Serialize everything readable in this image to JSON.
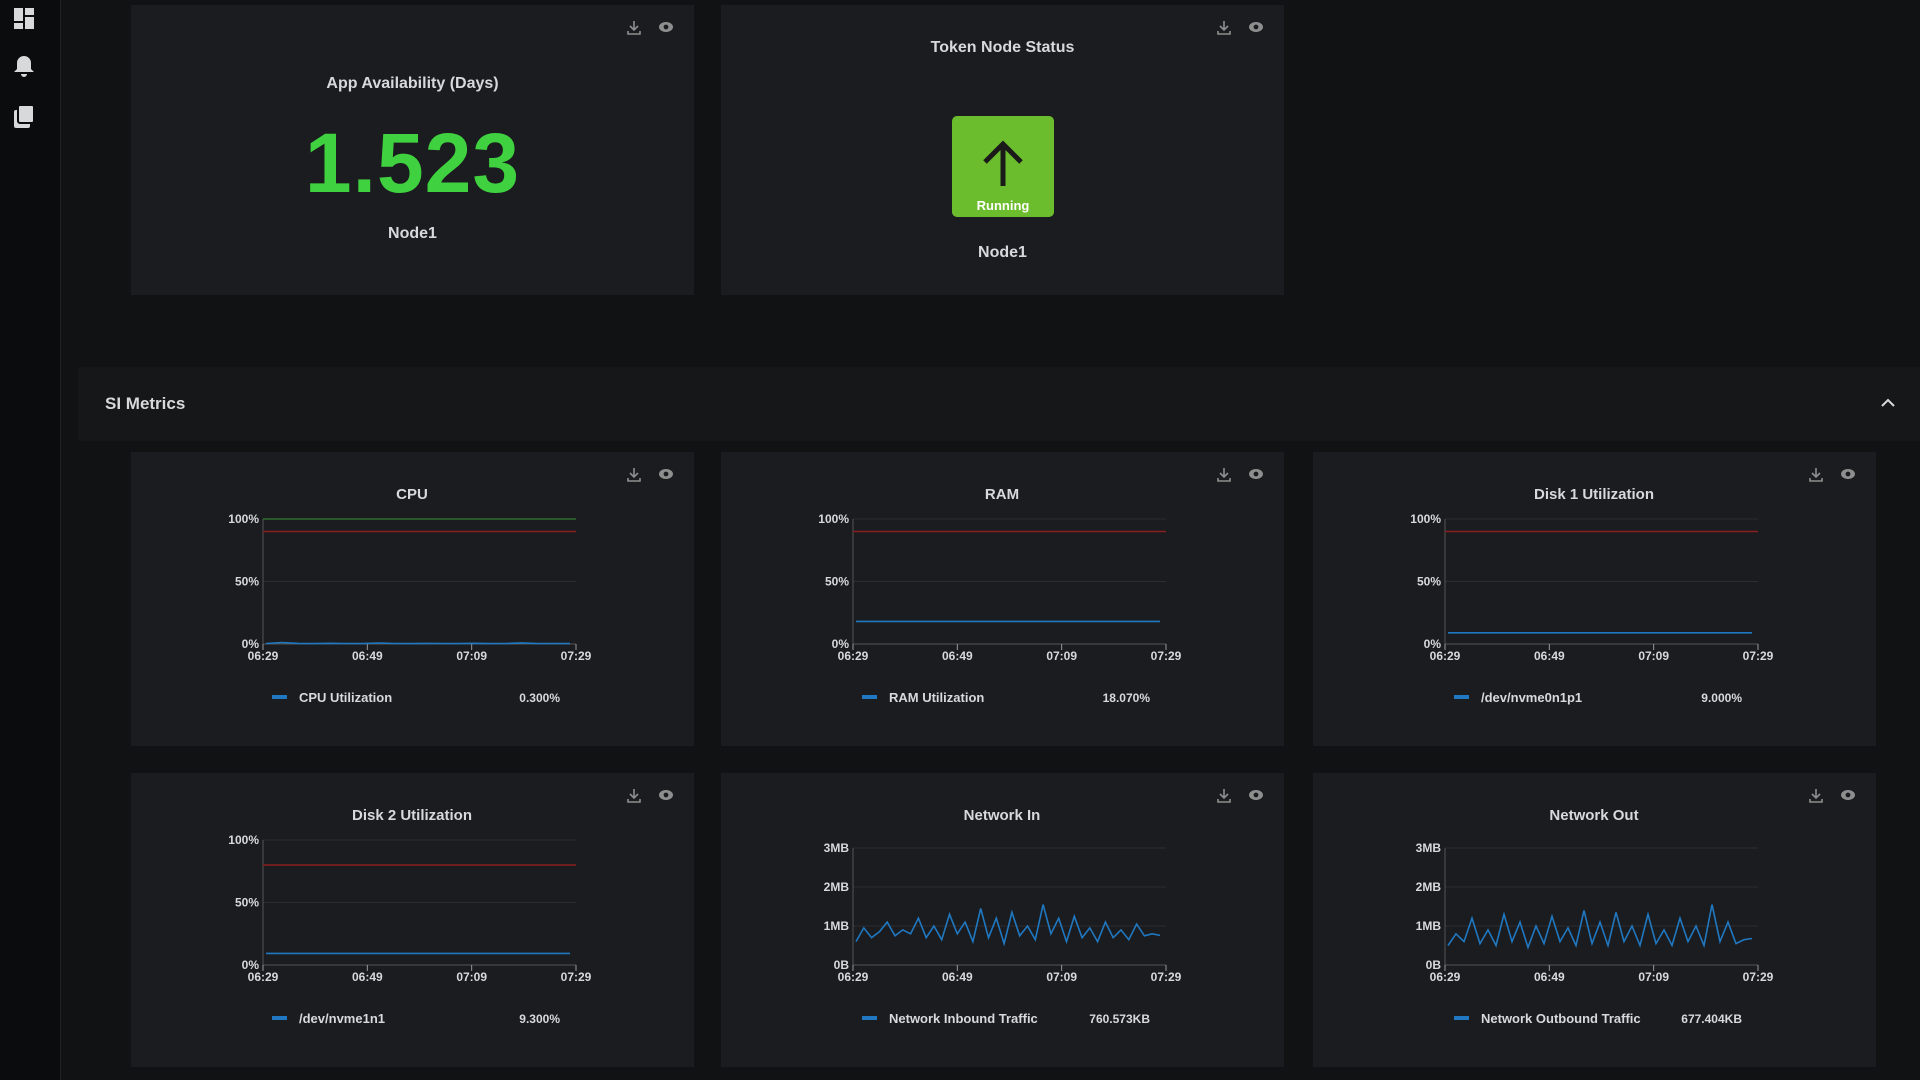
{
  "stat_panels": [
    {
      "title": "App Availability (Days)",
      "value": "1.523",
      "label": "Node1"
    },
    {
      "title": "Token Node Status",
      "status": "Running",
      "label": "Node1"
    }
  ],
  "section": {
    "title": "SI Metrics"
  },
  "charts": [
    {
      "type": "line",
      "title": "CPU",
      "xticks": [
        {
          "value": 0,
          "label": "06:29"
        },
        {
          "value": 20,
          "label": "06:49"
        },
        {
          "value": 40,
          "label": "07:09"
        },
        {
          "value": 60,
          "label": "07:29"
        }
      ],
      "xlim": [
        0,
        60
      ],
      "ylim": [
        0,
        100
      ],
      "yticks": [
        {
          "value": 0,
          "label": "0%"
        },
        {
          "value": 50,
          "label": "50%"
        },
        {
          "value": 100,
          "label": "100%"
        }
      ],
      "thresholds": [
        {
          "value": 100,
          "color": "#2f6b2f"
        },
        {
          "value": 90,
          "color": "#8a1f1f"
        }
      ],
      "series": [
        {
          "name": "CPU Utilization",
          "color": "#1f78c1",
          "current": "0.300%",
          "values": [
            0.4,
            1.2,
            0.5,
            0.3,
            0.6,
            0.4,
            0.3,
            0.8,
            0.4,
            0.3,
            0.5,
            0.4,
            0.3,
            0.6,
            0.3,
            0.4,
            0.9,
            0.3,
            0.4,
            0.3
          ]
        }
      ]
    },
    {
      "type": "line",
      "title": "RAM",
      "xticks": [
        {
          "value": 0,
          "label": "06:29"
        },
        {
          "value": 20,
          "label": "06:49"
        },
        {
          "value": 40,
          "label": "07:09"
        },
        {
          "value": 60,
          "label": "07:29"
        }
      ],
      "xlim": [
        0,
        60
      ],
      "ylim": [
        0,
        100
      ],
      "yticks": [
        {
          "value": 0,
          "label": "0%"
        },
        {
          "value": 50,
          "label": "50%"
        },
        {
          "value": 100,
          "label": "100%"
        }
      ],
      "thresholds": [
        {
          "value": 90,
          "color": "#8a1f1f"
        }
      ],
      "series": [
        {
          "name": "RAM Utilization",
          "color": "#1f78c1",
          "current": "18.070%",
          "values": [
            18.07,
            18.07,
            18.07,
            18.07,
            18.07,
            18.07,
            18.07,
            18.07
          ]
        }
      ]
    },
    {
      "type": "line",
      "title": "Disk 1 Utilization",
      "xticks": [
        {
          "value": 0,
          "label": "06:29"
        },
        {
          "value": 20,
          "label": "06:49"
        },
        {
          "value": 40,
          "label": "07:09"
        },
        {
          "value": 60,
          "label": "07:29"
        }
      ],
      "xlim": [
        0,
        60
      ],
      "ylim": [
        0,
        100
      ],
      "yticks": [
        {
          "value": 0,
          "label": "0%"
        },
        {
          "value": 50,
          "label": "50%"
        },
        {
          "value": 100,
          "label": "100%"
        }
      ],
      "thresholds": [
        {
          "value": 90,
          "color": "#8a1f1f"
        }
      ],
      "series": [
        {
          "name": "/dev/nvme0n1p1",
          "color": "#1f78c1",
          "current": "9.000%",
          "values": [
            9,
            9,
            9,
            9,
            9,
            9,
            9,
            9
          ]
        }
      ]
    },
    {
      "type": "line",
      "title": "Disk 2 Utilization",
      "xticks": [
        {
          "value": 0,
          "label": "06:29"
        },
        {
          "value": 20,
          "label": "06:49"
        },
        {
          "value": 40,
          "label": "07:09"
        },
        {
          "value": 60,
          "label": "07:29"
        }
      ],
      "xlim": [
        0,
        60
      ],
      "ylim": [
        0,
        100
      ],
      "yticks": [
        {
          "value": 0,
          "label": "0%"
        },
        {
          "value": 50,
          "label": "50%"
        },
        {
          "value": 100,
          "label": "100%"
        }
      ],
      "thresholds": [
        {
          "value": 80,
          "color": "#8a1f1f"
        }
      ],
      "series": [
        {
          "name": "/dev/nvme1n1",
          "color": "#1f78c1",
          "current": "9.300%",
          "values": [
            9.3,
            9.3,
            9.3,
            9.3,
            9.3,
            9.3,
            9.3,
            9.3
          ]
        }
      ]
    },
    {
      "type": "line",
      "title": "Network In",
      "xticks": [
        {
          "value": 0,
          "label": "06:29"
        },
        {
          "value": 20,
          "label": "06:49"
        },
        {
          "value": 40,
          "label": "07:09"
        },
        {
          "value": 60,
          "label": "07:29"
        }
      ],
      "xlim": [
        0,
        60
      ],
      "ylim": [
        0,
        3
      ],
      "yticks": [
        {
          "value": 0,
          "label": "0B"
        },
        {
          "value": 1,
          "label": "1MB"
        },
        {
          "value": 2,
          "label": "2MB"
        },
        {
          "value": 3,
          "label": "3MB"
        }
      ],
      "thresholds": [],
      "series": [
        {
          "name": "Network Inbound Traffic",
          "color": "#1f78c1",
          "current": "760.573KB",
          "values": [
            0.6,
            0.95,
            0.7,
            0.85,
            1.1,
            0.75,
            0.9,
            0.8,
            1.2,
            0.7,
            1.0,
            0.65,
            1.3,
            0.8,
            1.1,
            0.6,
            1.45,
            0.7,
            1.2,
            0.55,
            1.35,
            0.75,
            1.0,
            0.65,
            1.55,
            0.8,
            1.2,
            0.6,
            1.25,
            0.7,
            0.95,
            0.6,
            1.1,
            0.7,
            0.9,
            0.65,
            1.05,
            0.75,
            0.8,
            0.76
          ]
        }
      ]
    },
    {
      "type": "line",
      "title": "Network Out",
      "xticks": [
        {
          "value": 0,
          "label": "06:29"
        },
        {
          "value": 20,
          "label": "06:49"
        },
        {
          "value": 40,
          "label": "07:09"
        },
        {
          "value": 60,
          "label": "07:29"
        }
      ],
      "xlim": [
        0,
        60
      ],
      "ylim": [
        0,
        3
      ],
      "yticks": [
        {
          "value": 0,
          "label": "0B"
        },
        {
          "value": 1,
          "label": "1MB"
        },
        {
          "value": 2,
          "label": "2MB"
        },
        {
          "value": 3,
          "label": "3MB"
        }
      ],
      "thresholds": [],
      "series": [
        {
          "name": "Network Outbound Traffic",
          "color": "#1f78c1",
          "current": "677.404KB",
          "values": [
            0.5,
            0.8,
            0.6,
            1.2,
            0.55,
            0.9,
            0.5,
            1.3,
            0.6,
            1.1,
            0.45,
            1.0,
            0.55,
            1.25,
            0.6,
            0.95,
            0.5,
            1.4,
            0.55,
            1.1,
            0.5,
            1.35,
            0.6,
            1.0,
            0.5,
            1.3,
            0.55,
            0.9,
            0.5,
            1.2,
            0.6,
            1.0,
            0.5,
            1.55,
            0.6,
            1.1,
            0.55,
            0.65,
            0.68
          ]
        }
      ]
    }
  ]
}
